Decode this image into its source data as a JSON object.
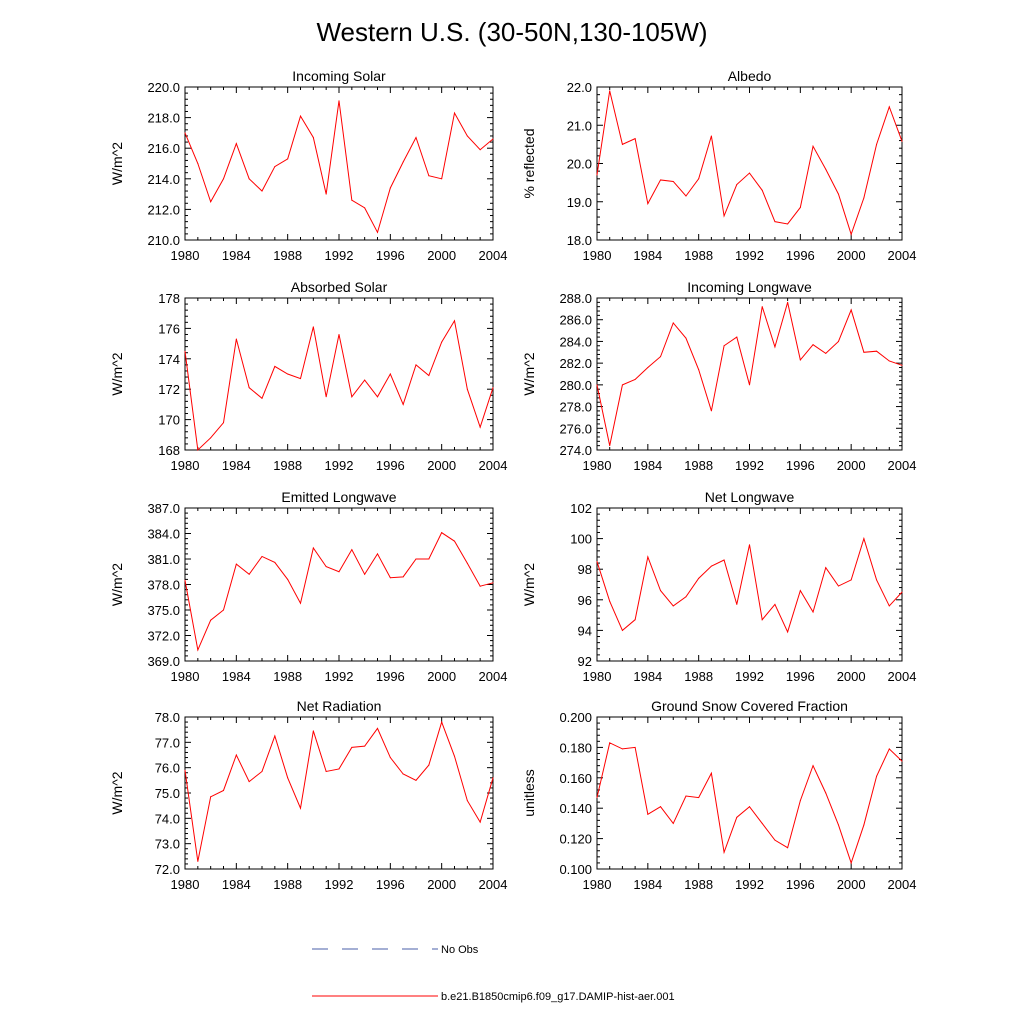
{
  "title": "Western U.S. (30-50N,130-105W)",
  "legend": {
    "obs_label": "No Obs",
    "model_label": "b.e21.B1850cmip6.f09_g17.DAMIP-hist-aer.001",
    "obs_color": "#4a5fa8",
    "model_color": "#ff0000"
  },
  "chart_data": [
    {
      "type": "line",
      "title": "Incoming Solar",
      "ylabel": "W/m^2",
      "xlim": [
        1980,
        2004
      ],
      "ylim": [
        210,
        220
      ],
      "xticks": [
        "1980",
        "1984",
        "1988",
        "1992",
        "1996",
        "2000",
        "2004"
      ],
      "yticks": [
        "210.0",
        "212.0",
        "214.0",
        "216.0",
        "218.0",
        "220.0"
      ],
      "x": [
        1980,
        1981,
        1982,
        1983,
        1984,
        1985,
        1986,
        1987,
        1988,
        1989,
        1990,
        1991,
        1992,
        1993,
        1994,
        1995,
        1996,
        1997,
        1998,
        1999,
        2000,
        2001,
        2002,
        2003,
        2004
      ],
      "series": [
        {
          "values": [
            217.0,
            215.0,
            212.5,
            214.0,
            216.3,
            214.0,
            213.2,
            214.8,
            215.3,
            218.1,
            216.7,
            213.0,
            219.1,
            212.6,
            212.1,
            210.5,
            213.4,
            215.1,
            216.7,
            214.2,
            214.0,
            218.3,
            216.8,
            215.9,
            216.6
          ]
        }
      ]
    },
    {
      "type": "line",
      "title": "Albedo",
      "ylabel": "% reflected",
      "xlim": [
        1980,
        2004
      ],
      "ylim": [
        18,
        22
      ],
      "xticks": [
        "1980",
        "1984",
        "1988",
        "1992",
        "1996",
        "2000",
        "2004"
      ],
      "yticks": [
        "18.0",
        "19.0",
        "20.0",
        "21.0",
        "22.0"
      ],
      "x": [
        1980,
        1981,
        1982,
        1983,
        1984,
        1985,
        1986,
        1987,
        1988,
        1989,
        1990,
        1991,
        1992,
        1993,
        1994,
        1995,
        1996,
        1997,
        1998,
        1999,
        2000,
        2001,
        2002,
        2003,
        2004
      ],
      "series": [
        {
          "values": [
            19.7,
            21.9,
            20.5,
            20.65,
            18.95,
            19.57,
            19.53,
            19.15,
            19.6,
            20.72,
            18.63,
            19.45,
            19.75,
            19.3,
            18.48,
            18.42,
            18.85,
            20.45,
            19.85,
            19.2,
            18.15,
            19.1,
            20.5,
            21.48,
            20.58
          ]
        }
      ]
    },
    {
      "type": "line",
      "title": "Absorbed Solar",
      "ylabel": "W/m^2",
      "xlim": [
        1980,
        2004
      ],
      "ylim": [
        168,
        178
      ],
      "xticks": [
        "1980",
        "1984",
        "1988",
        "1992",
        "1996",
        "2000",
        "2004"
      ],
      "yticks": [
        "168",
        "170",
        "172",
        "174",
        "176",
        "178"
      ],
      "x": [
        1980,
        1981,
        1982,
        1983,
        1984,
        1985,
        1986,
        1987,
        1988,
        1989,
        1990,
        1991,
        1992,
        1993,
        1994,
        1995,
        1996,
        1997,
        1998,
        1999,
        2000,
        2001,
        2002,
        2003,
        2004
      ],
      "series": [
        {
          "values": [
            174.5,
            168.0,
            168.8,
            169.8,
            175.3,
            172.1,
            171.4,
            173.5,
            173.0,
            172.7,
            176.1,
            171.5,
            175.6,
            171.5,
            172.6,
            171.5,
            173.0,
            171.0,
            173.6,
            172.9,
            175.1,
            176.5,
            172.0,
            169.5,
            172.1
          ]
        }
      ]
    },
    {
      "type": "line",
      "title": "Incoming Longwave",
      "ylabel": "W/m^2",
      "xlim": [
        1980,
        2004
      ],
      "ylim": [
        274,
        288
      ],
      "xticks": [
        "1980",
        "1984",
        "1988",
        "1992",
        "1996",
        "2000",
        "2004"
      ],
      "yticks": [
        "274.0",
        "276.0",
        "278.0",
        "280.0",
        "282.0",
        "284.0",
        "286.0",
        "288.0"
      ],
      "x": [
        1980,
        1981,
        1982,
        1983,
        1984,
        1985,
        1986,
        1987,
        1988,
        1989,
        1990,
        1991,
        1992,
        1993,
        1994,
        1995,
        1996,
        1997,
        1998,
        1999,
        2000,
        2001,
        2002,
        2003,
        2004
      ],
      "series": [
        {
          "values": [
            280.0,
            274.4,
            280.0,
            280.5,
            281.6,
            282.6,
            285.7,
            284.3,
            281.4,
            277.6,
            283.6,
            284.4,
            280.0,
            287.2,
            283.5,
            287.6,
            282.3,
            283.7,
            282.9,
            284.0,
            286.9,
            283.0,
            283.1,
            282.2,
            281.8
          ]
        }
      ]
    },
    {
      "type": "line",
      "title": "Emitted Longwave",
      "ylabel": "W/m^2",
      "xlim": [
        1980,
        2004
      ],
      "ylim": [
        369,
        387
      ],
      "xticks": [
        "1980",
        "1984",
        "1988",
        "1992",
        "1996",
        "2000",
        "2004"
      ],
      "yticks": [
        "369.0",
        "372.0",
        "375.0",
        "378.0",
        "381.0",
        "384.0",
        "387.0"
      ],
      "x": [
        1980,
        1981,
        1982,
        1983,
        1984,
        1985,
        1986,
        1987,
        1988,
        1989,
        1990,
        1991,
        1992,
        1993,
        1994,
        1995,
        1996,
        1997,
        1998,
        1999,
        2000,
        2001,
        2002,
        2003,
        2004
      ],
      "series": [
        {
          "values": [
            378.5,
            370.3,
            373.8,
            375.0,
            380.4,
            379.2,
            381.3,
            380.6,
            378.6,
            375.8,
            382.3,
            380.1,
            379.5,
            382.1,
            379.2,
            381.6,
            378.8,
            378.9,
            381.0,
            381.0,
            384.1,
            383.1,
            380.5,
            377.8,
            378.2
          ]
        }
      ]
    },
    {
      "type": "line",
      "title": "Net Longwave",
      "ylabel": "W/m^2",
      "xlim": [
        1980,
        2004
      ],
      "ylim": [
        92,
        102
      ],
      "xticks": [
        "1980",
        "1984",
        "1988",
        "1992",
        "1996",
        "2000",
        "2004"
      ],
      "yticks": [
        "92",
        "94",
        "96",
        "98",
        "100",
        "102"
      ],
      "x": [
        1980,
        1981,
        1982,
        1983,
        1984,
        1985,
        1986,
        1987,
        1988,
        1989,
        1990,
        1991,
        1992,
        1993,
        1994,
        1995,
        1996,
        1997,
        1998,
        1999,
        2000,
        2001,
        2002,
        2003,
        2004
      ],
      "series": [
        {
          "values": [
            98.5,
            95.9,
            94.0,
            94.7,
            98.8,
            96.6,
            95.6,
            96.2,
            97.4,
            98.2,
            98.6,
            95.7,
            99.6,
            94.7,
            95.7,
            93.9,
            96.6,
            95.2,
            98.1,
            96.9,
            97.3,
            100.0,
            97.3,
            95.6,
            96.5
          ]
        }
      ]
    },
    {
      "type": "line",
      "title": "Net Radiation",
      "ylabel": "W/m^2",
      "xlim": [
        1980,
        2004
      ],
      "ylim": [
        72,
        78
      ],
      "xticks": [
        "1980",
        "1984",
        "1988",
        "1992",
        "1996",
        "2000",
        "2004"
      ],
      "yticks": [
        "72.0",
        "73.0",
        "74.0",
        "75.0",
        "76.0",
        "77.0",
        "78.0"
      ],
      "x": [
        1980,
        1981,
        1982,
        1983,
        1984,
        1985,
        1986,
        1987,
        1988,
        1989,
        1990,
        1991,
        1992,
        1993,
        1994,
        1995,
        1996,
        1997,
        1998,
        1999,
        2000,
        2001,
        2002,
        2003,
        2004
      ],
      "series": [
        {
          "values": [
            75.9,
            72.3,
            74.85,
            75.1,
            76.5,
            75.45,
            75.85,
            77.25,
            75.6,
            74.4,
            77.45,
            75.85,
            75.95,
            76.8,
            76.85,
            77.55,
            76.4,
            75.75,
            75.5,
            76.1,
            77.8,
            76.45,
            74.7,
            73.85,
            75.6
          ]
        }
      ]
    },
    {
      "type": "line",
      "title": "Ground Snow Covered Fraction",
      "ylabel": "unitless",
      "xlim": [
        1980,
        2004
      ],
      "ylim": [
        0.1,
        0.2
      ],
      "xticks": [
        "1980",
        "1984",
        "1988",
        "1992",
        "1996",
        "2000",
        "2004"
      ],
      "yticks": [
        "0.100",
        "0.120",
        "0.140",
        "0.160",
        "0.180",
        "0.200"
      ],
      "x": [
        1980,
        1981,
        1982,
        1983,
        1984,
        1985,
        1986,
        1987,
        1988,
        1989,
        1990,
        1991,
        1992,
        1993,
        1994,
        1995,
        1996,
        1997,
        1998,
        1999,
        2000,
        2001,
        2002,
        2003,
        2004
      ],
      "series": [
        {
          "values": [
            0.147,
            0.183,
            0.179,
            0.18,
            0.136,
            0.141,
            0.13,
            0.148,
            0.147,
            0.163,
            0.111,
            0.134,
            0.141,
            0.13,
            0.119,
            0.114,
            0.145,
            0.168,
            0.15,
            0.129,
            0.104,
            0.129,
            0.161,
            0.179,
            0.171
          ]
        }
      ]
    }
  ]
}
